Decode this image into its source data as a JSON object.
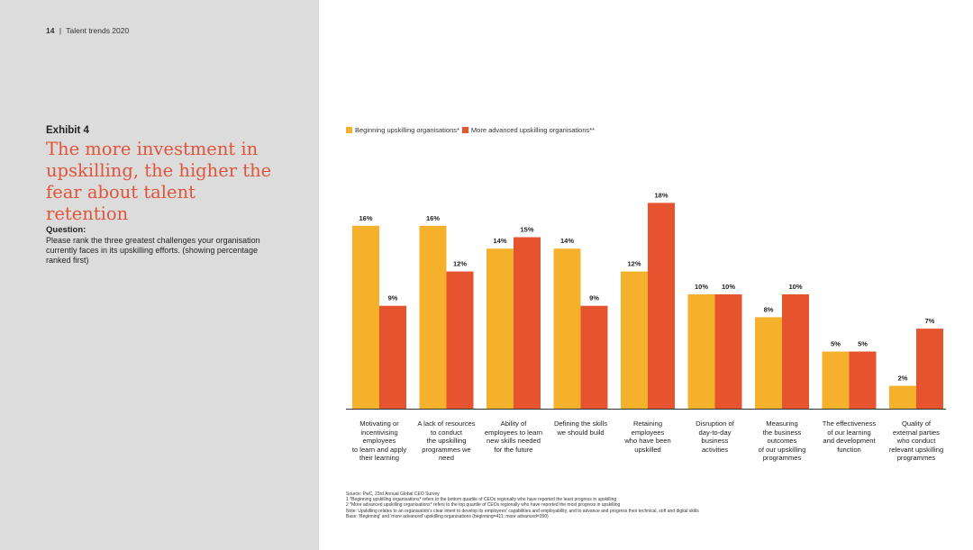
{
  "header": {
    "page_number": "14",
    "separator": "|",
    "doc_title": "Talent trends 2020"
  },
  "exhibit_label": "Exhibit 4",
  "headline": "The more investment in upskilling, the higher the fear about talent retention",
  "question": {
    "label": "Question:",
    "text": "Please rank the three greatest challenges your organisation currently faces in its upskilling efforts. (showing percentage ranked first)"
  },
  "colors": {
    "beginning": "#f6b12c",
    "advanced": "#e6532f",
    "sidebar": "#dcdcdc",
    "headline": "#e1543a"
  },
  "chart_data": {
    "type": "bar",
    "unit": "%",
    "ylim": [
      0,
      20
    ],
    "categories": [
      "Motivating or incentivising employees to learn and apply their learning",
      "A lack of resources to conduct the upskilling programmes we need",
      "Ability of employees to learn new skills needed for the future",
      "Defining the skills we should build",
      "Retaining employees who have been upskilled",
      "Disruption of day-to-day business activities",
      "Measuring the business outcomes of our upskilling programmes",
      "The effectiveness of our learning and development function",
      "Quality of external parties who conduct relevant upskilling programmes"
    ],
    "category_lines": [
      [
        "Motivating or",
        "incentivising",
        "employees",
        "to learn and apply",
        "their learning"
      ],
      [
        "A lack of resources",
        "to conduct",
        "the upskilling",
        "programmes we",
        "need"
      ],
      [
        "Ability of",
        "employees to learn",
        "new skills needed",
        "for the future"
      ],
      [
        "Defining the skills",
        "we should build"
      ],
      [
        "Retaining",
        "employees",
        "who have been",
        "upskilled"
      ],
      [
        "Disruption of",
        "day-to-day",
        "business",
        "activities"
      ],
      [
        "Measuring",
        "the business",
        "outcomes",
        "of our upskilling",
        "programmes"
      ],
      [
        "The effectiveness",
        "of our learning",
        "and development",
        "function"
      ],
      [
        "Quality of",
        "external parties",
        "who conduct",
        "relevant upskilling",
        "programmes"
      ]
    ],
    "series": [
      {
        "name": "Beginning upskilling organisations*",
        "key": "beginning",
        "values": [
          16,
          16,
          14,
          14,
          12,
          10,
          8,
          5,
          2
        ]
      },
      {
        "name": "More advanced upskilling organisations**",
        "key": "advanced",
        "values": [
          9,
          12,
          15,
          9,
          18,
          10,
          10,
          5,
          7
        ]
      }
    ],
    "legend_position": "top-left"
  },
  "footnotes": [
    "Source: PwC, 23rd Annual Global CEO Survey",
    "1 *Beginning upskilling organisations* refers to the bottom quartile of CEOs regionally who have reported the least progress in upskilling",
    "2 *More advanced upskilling organisations* refers to the top quartile of CEOs regionally who have reported the most progress in upskilling",
    "Note: Upskilling relates to an organisation's clear intent to develop its employees' capabilities and employability, and to advance and progress their technical, soft and digital skills",
    "Base: 'Beginning' and 'more advanced' upskilling organisations (beginning=411; more advanced=350)"
  ]
}
